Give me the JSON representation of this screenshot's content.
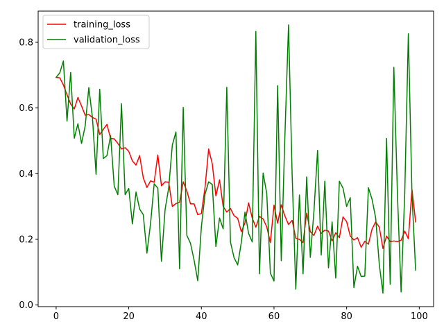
{
  "chart_data": {
    "type": "line",
    "title": "",
    "xlabel": "",
    "ylabel": "",
    "xlim": [
      -4.95,
      103.95
    ],
    "ylim": [
      -0.005,
      0.895
    ],
    "xticks": [
      0,
      20,
      40,
      60,
      80,
      100
    ],
    "yticks": [
      0.0,
      0.2,
      0.4,
      0.6,
      0.8
    ],
    "xtick_labels": [
      "0",
      "20",
      "40",
      "60",
      "80",
      "100"
    ],
    "ytick_labels": [
      "0.0",
      "0.2",
      "0.4",
      "0.6",
      "0.8"
    ],
    "grid": false,
    "legend_position": "upper-left",
    "x": [
      0,
      1,
      2,
      3,
      4,
      5,
      6,
      7,
      8,
      9,
      10,
      11,
      12,
      13,
      14,
      15,
      16,
      17,
      18,
      19,
      20,
      21,
      22,
      23,
      24,
      25,
      26,
      27,
      28,
      29,
      30,
      31,
      32,
      33,
      34,
      35,
      36,
      37,
      38,
      39,
      40,
      41,
      42,
      43,
      44,
      45,
      46,
      47,
      48,
      49,
      50,
      51,
      52,
      53,
      54,
      55,
      56,
      57,
      58,
      59,
      60,
      61,
      62,
      63,
      64,
      65,
      66,
      67,
      68,
      69,
      70,
      71,
      72,
      73,
      74,
      75,
      76,
      77,
      78,
      79,
      80,
      81,
      82,
      83,
      84,
      85,
      86,
      87,
      88,
      89,
      90,
      91,
      92,
      93,
      94,
      95,
      96,
      97,
      98,
      99
    ],
    "series": [
      {
        "name": "training_loss",
        "color": "#ff0000",
        "values": [
          0.693,
          0.692,
          0.67,
          0.64,
          0.612,
          0.597,
          0.632,
          0.606,
          0.578,
          0.58,
          0.571,
          0.566,
          0.519,
          0.535,
          0.55,
          0.507,
          0.506,
          0.492,
          0.475,
          0.479,
          0.468,
          0.439,
          0.426,
          0.455,
          0.387,
          0.358,
          0.378,
          0.374,
          0.457,
          0.363,
          0.375,
          0.374,
          0.3,
          0.309,
          0.313,
          0.375,
          0.347,
          0.308,
          0.308,
          0.275,
          0.279,
          0.357,
          0.475,
          0.43,
          0.332,
          0.381,
          0.3,
          0.283,
          0.294,
          0.272,
          0.264,
          0.223,
          0.25,
          0.311,
          0.265,
          0.237,
          0.27,
          0.262,
          0.238,
          0.19,
          0.304,
          0.249,
          0.305,
          0.271,
          0.245,
          0.258,
          0.203,
          0.2,
          0.19,
          0.28,
          0.223,
          0.212,
          0.24,
          0.218,
          0.228,
          0.225,
          0.195,
          0.22,
          0.205,
          0.268,
          0.254,
          0.21,
          0.198,
          0.205,
          0.176,
          0.194,
          0.185,
          0.231,
          0.253,
          0.237,
          0.172,
          0.21,
          0.193,
          0.195,
          0.193,
          0.197,
          0.225,
          0.202,
          0.352,
          0.253
        ]
      },
      {
        "name": "validation_loss",
        "color": "#008000",
        "values": [
          0.693,
          0.707,
          0.743,
          0.56,
          0.708,
          0.508,
          0.552,
          0.492,
          0.545,
          0.662,
          0.571,
          0.398,
          0.657,
          0.446,
          0.455,
          0.516,
          0.362,
          0.336,
          0.613,
          0.336,
          0.355,
          0.247,
          0.344,
          0.292,
          0.275,
          0.158,
          0.248,
          0.369,
          0.356,
          0.133,
          0.29,
          0.357,
          0.487,
          0.527,
          0.11,
          0.602,
          0.212,
          0.188,
          0.136,
          0.074,
          0.238,
          0.337,
          0.375,
          0.367,
          0.178,
          0.265,
          0.232,
          0.663,
          0.192,
          0.144,
          0.122,
          0.191,
          0.283,
          0.218,
          0.192,
          0.833,
          0.095,
          0.402,
          0.34,
          0.097,
          0.073,
          0.668,
          0.135,
          0.514,
          0.853,
          0.395,
          0.048,
          0.335,
          0.095,
          0.39,
          0.145,
          0.285,
          0.471,
          0.152,
          0.377,
          0.113,
          0.253,
          0.082,
          0.377,
          0.356,
          0.3,
          0.327,
          0.053,
          0.118,
          0.087,
          0.088,
          0.357,
          0.322,
          0.265,
          0.123,
          0.036,
          0.507,
          0.063,
          0.724,
          0.335,
          0.04,
          0.338,
          0.826,
          0.336,
          0.106
        ]
      }
    ]
  }
}
